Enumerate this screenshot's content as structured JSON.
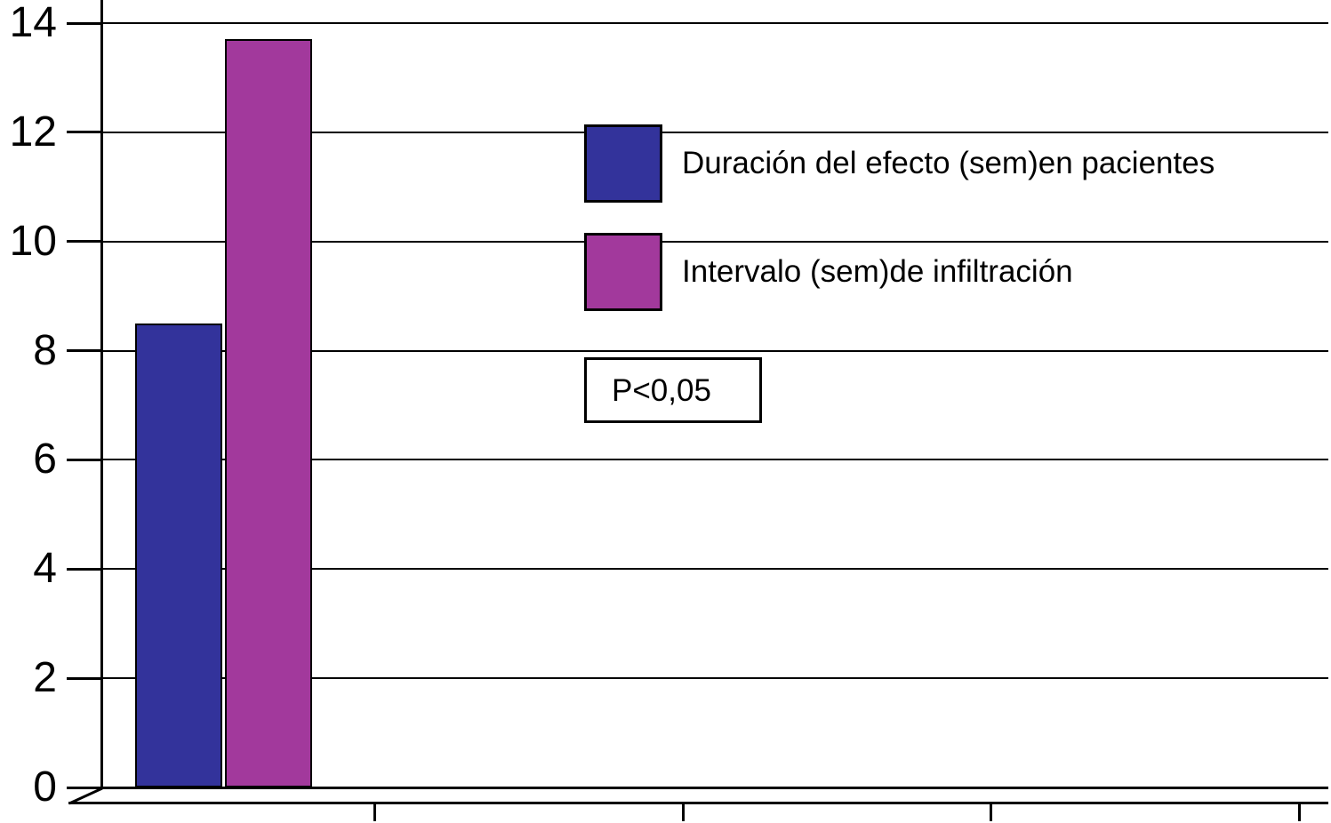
{
  "chart_data": {
    "type": "bar",
    "title": "",
    "xlabel": "",
    "ylabel": "",
    "categories": [
      ""
    ],
    "series": [
      {
        "name": "Duración del efecto (sem)en pacientes",
        "color": "#33339B",
        "values": [
          8.5
        ]
      },
      {
        "name": "Intervalo (sem)de infiltración",
        "color": "#A2399C",
        "values": [
          13.7
        ]
      }
    ],
    "ylim": [
      0,
      14
    ],
    "yticks": [
      0,
      2,
      4,
      6,
      8,
      10,
      12,
      14
    ],
    "grid": true,
    "legend_position": "center-right",
    "annotation": "P<0,05",
    "axis_color": "#000000",
    "background_color": "#FFFFFF"
  }
}
